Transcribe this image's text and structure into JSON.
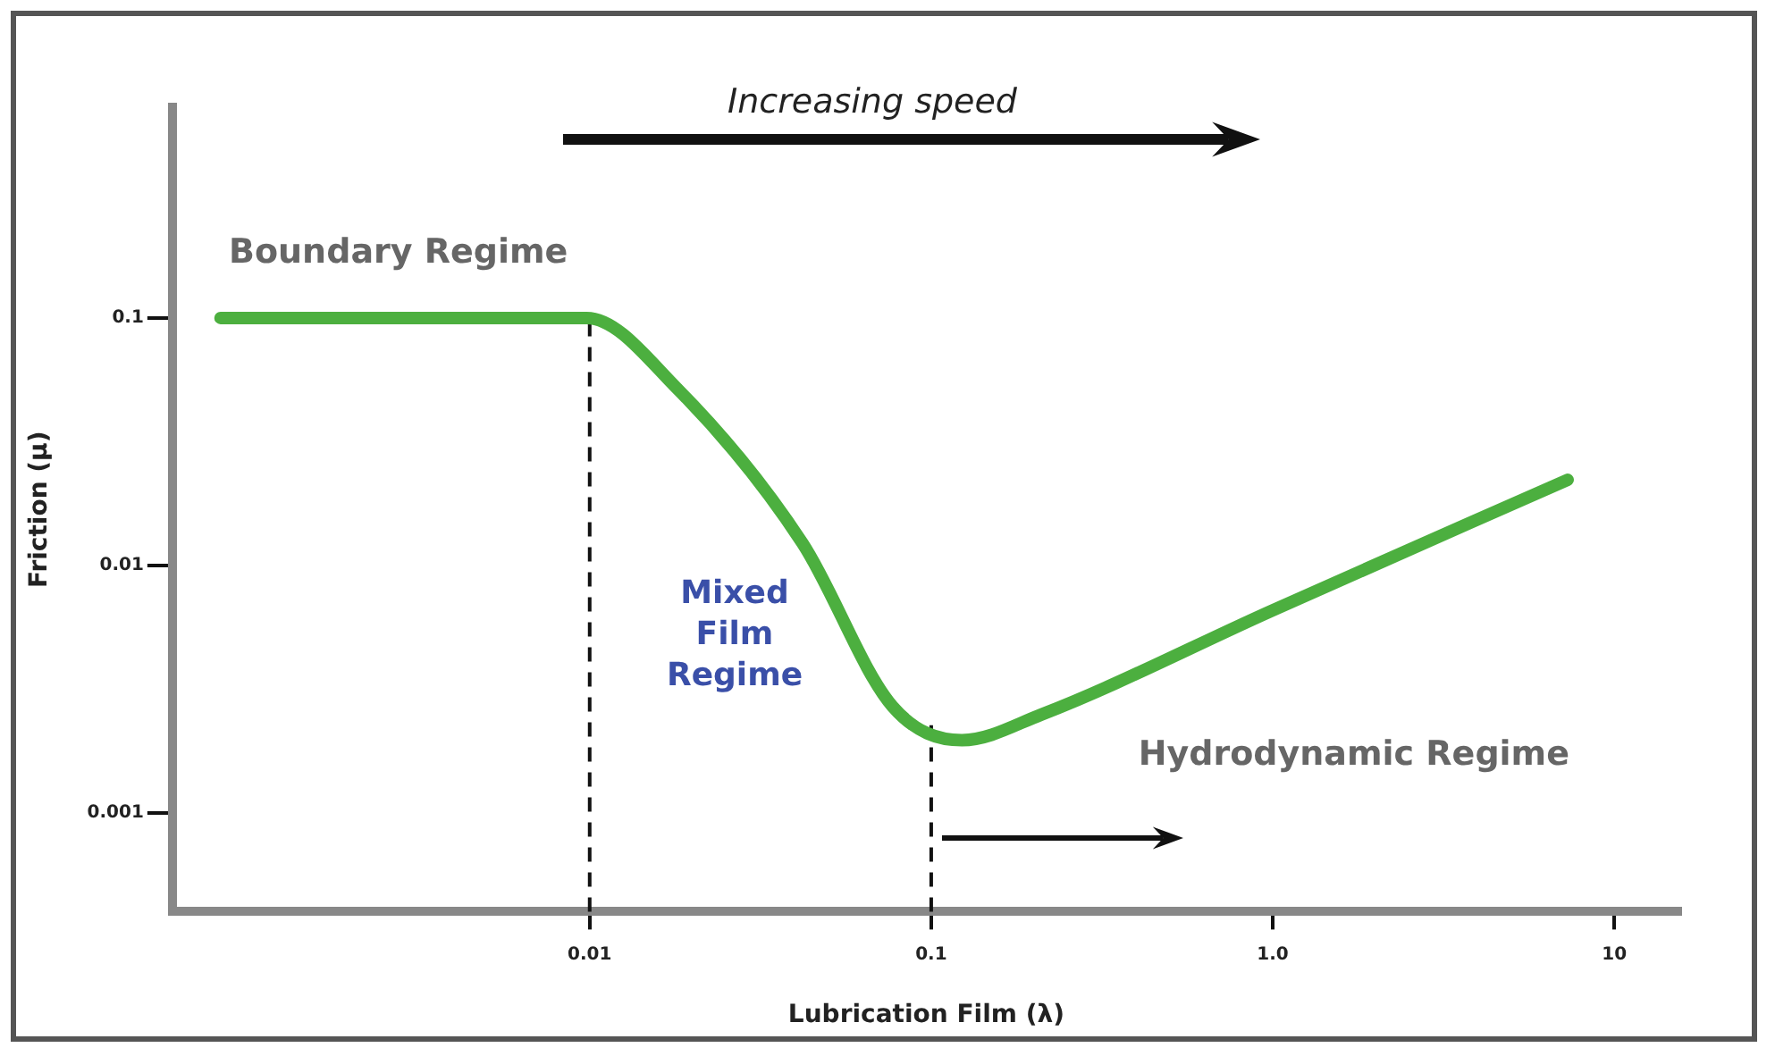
{
  "chart_data": {
    "type": "line",
    "xlabel": "Lubrication Film (λ)",
    "ylabel": "Friction (μ)",
    "annotations": [
      "Increasing speed",
      "Boundary Regime",
      "Mixed\nFilm\nRegime",
      "Hydrodynamic Regime"
    ],
    "series": [
      {
        "color": "#4caf3f",
        "x": [
          0.00083,
          0.0098,
          0.018,
          0.042,
          0.077,
          0.123,
          0.21,
          1.0,
          7.3
        ],
        "values": [
          0.1,
          0.1,
          0.052,
          0.0123,
          0.0027,
          0.00197,
          0.0025,
          0.0066,
          0.0222
        ]
      }
    ],
    "log": "xy",
    "xlim": [
      0.00062,
      15.6
    ],
    "ylim": [
      0.0004,
      0.71
    ],
    "xticks": [
      0.01,
      0.1,
      {
        "value": 1,
        "label": "1.0"
      },
      10
    ],
    "yticks": [
      0.001,
      0.01,
      0.1
    ],
    "ref_lines": [
      {
        "axis": "x",
        "value": 0.01,
        "line_style": "dashed"
      },
      {
        "axis": "x",
        "value": 0.1,
        "line_style": "dashed"
      }
    ],
    "legend": false,
    "marker": "none",
    "line_style": "solid",
    "grid": false
  }
}
